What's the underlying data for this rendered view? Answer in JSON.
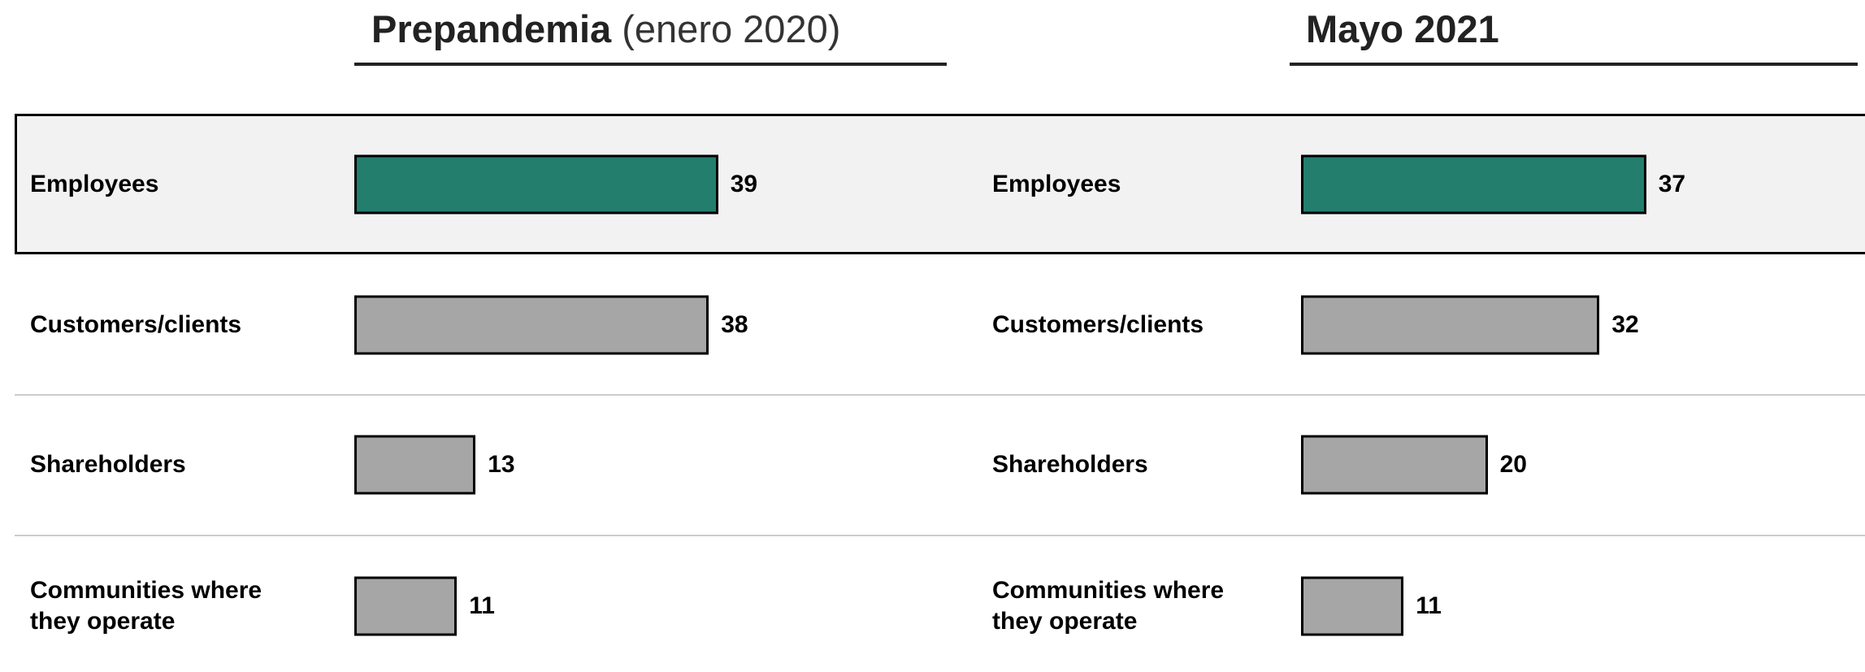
{
  "chart_data": [
    {
      "type": "bar",
      "title": "Prepandemia",
      "subtitle": "(enero 2020)",
      "categories": [
        "Employees",
        "Customers/clients",
        "Shareholders",
        "Communities where they operate"
      ],
      "values": [
        39,
        38,
        13,
        11
      ],
      "colors": [
        "#237e6e",
        "#a6a6a6",
        "#a6a6a6",
        "#a6a6a6"
      ]
    },
    {
      "type": "bar",
      "title": "Mayo 2021",
      "categories": [
        "Employees",
        "Customers/clients",
        "Shareholders",
        "Communities where they operate"
      ],
      "values": [
        37,
        32,
        20,
        11
      ],
      "colors": [
        "#237e6e",
        "#a6a6a6",
        "#a6a6a6",
        "#a6a6a6"
      ]
    }
  ]
}
